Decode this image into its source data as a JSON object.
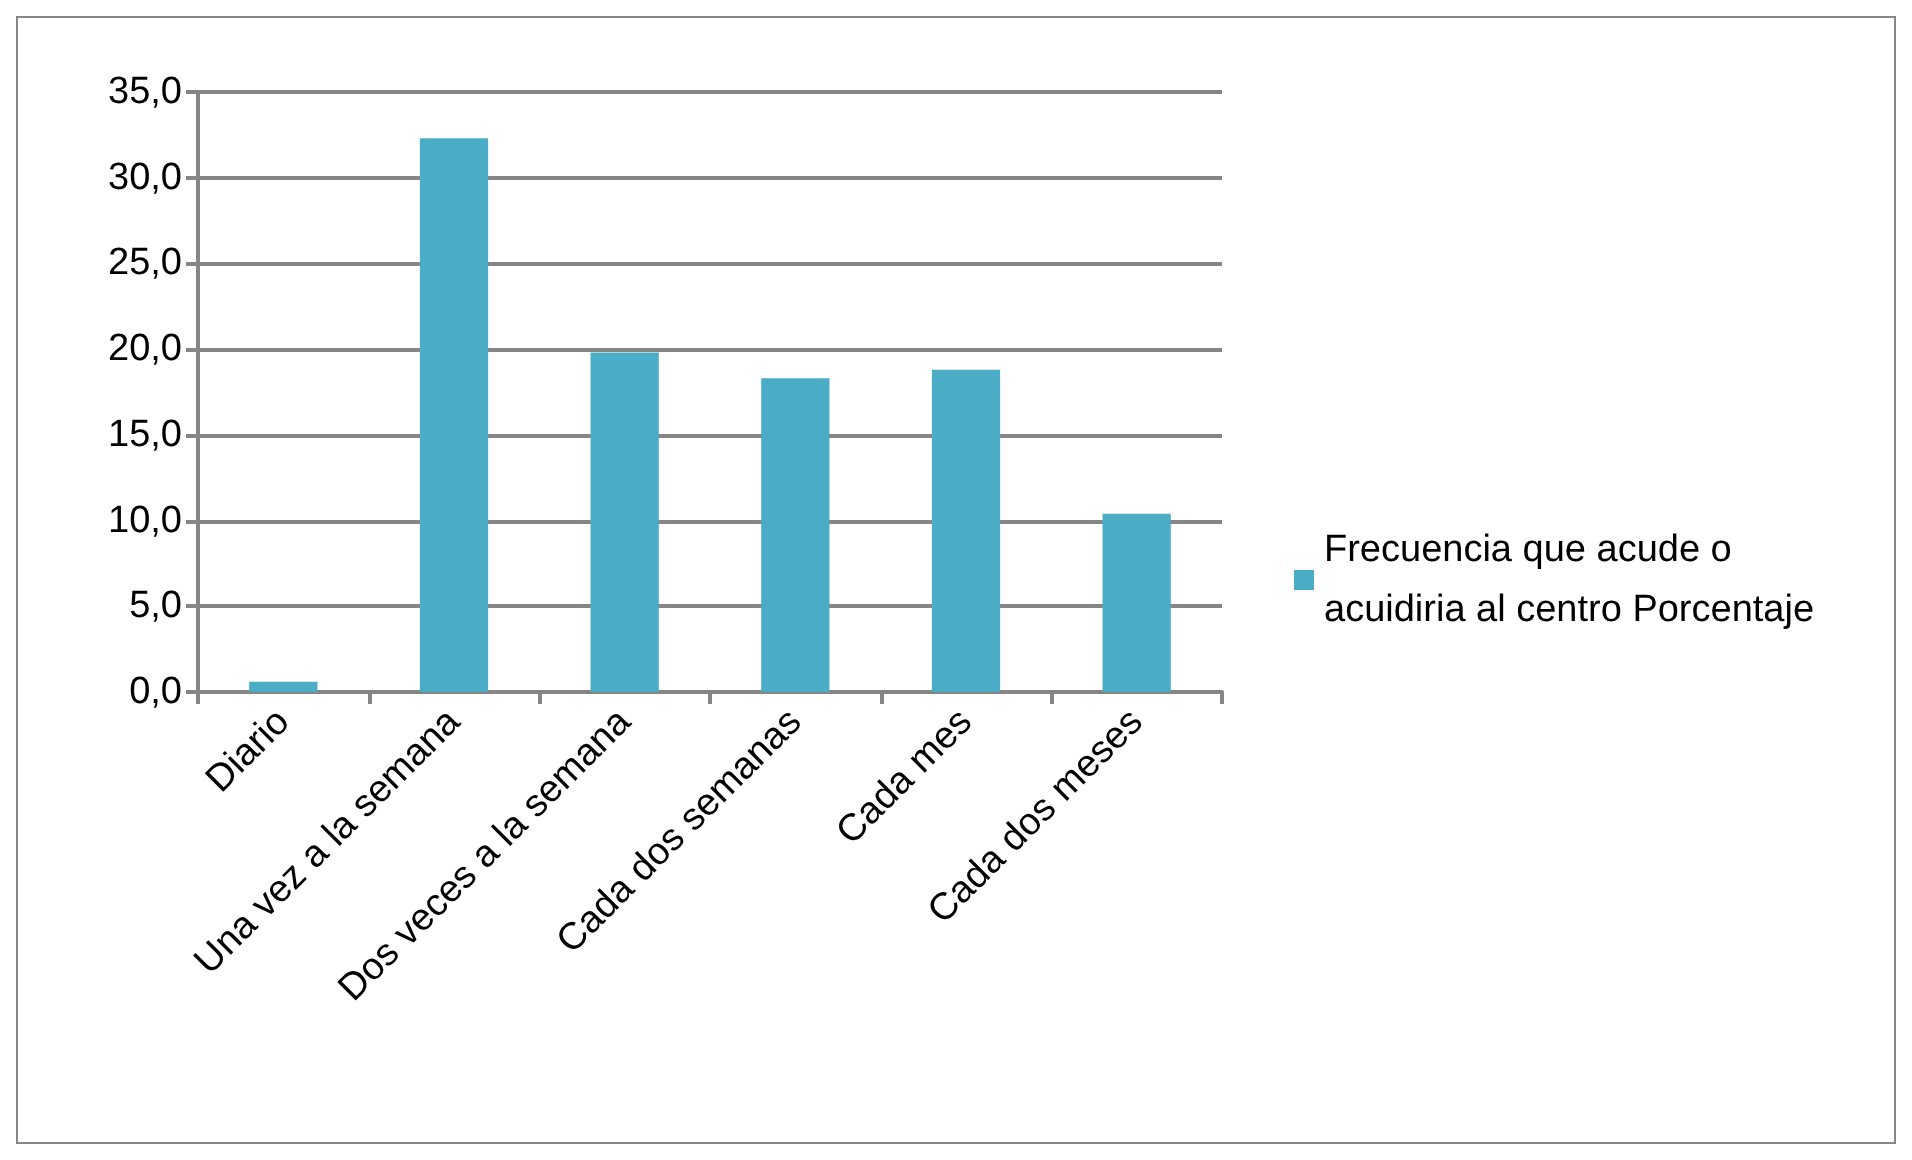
{
  "chart_data": {
    "type": "bar",
    "categories": [
      "Diario",
      "Una vez a la semana",
      "Dos veces a la semana",
      "Cada dos semanas",
      "Cada mes",
      "Cada dos meses"
    ],
    "series": [
      {
        "name": "Frecuencia que acude o acuidiria al centro Porcentaje",
        "color": "#4bacc6",
        "values": [
          0.6,
          32.3,
          19.8,
          18.3,
          18.8,
          10.4
        ]
      }
    ],
    "ylim": [
      0,
      35
    ],
    "yticks": [
      {
        "value": 0,
        "label": "0,0"
      },
      {
        "value": 5,
        "label": "5,0"
      },
      {
        "value": 10,
        "label": "10,0"
      },
      {
        "value": 15,
        "label": "15,0"
      },
      {
        "value": 20,
        "label": "20,0"
      },
      {
        "value": 25,
        "label": "25,0"
      },
      {
        "value": 30,
        "label": "30,0"
      },
      {
        "value": 35,
        "label": "35,0"
      }
    ],
    "grid": "y",
    "legend": "right"
  }
}
